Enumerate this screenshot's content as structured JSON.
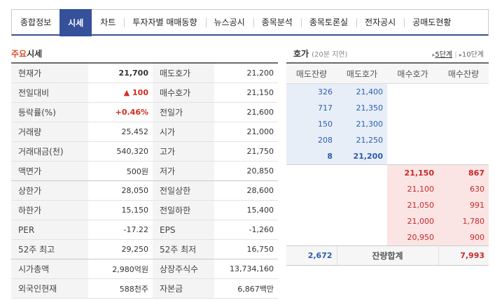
{
  "tabs": [
    "종합정보",
    "시세",
    "차트",
    "투자자별 매매동향",
    "뉴스공시",
    "종목분석",
    "종목토론실",
    "전자공시",
    "공매도현황"
  ],
  "main": {
    "title_highlight": "주요",
    "title_rest": "시세"
  },
  "info_rows": [
    [
      "현재가",
      "21,700",
      "매도호가",
      "21,200"
    ],
    [
      "전일대비",
      "▲ 100",
      "매수호가",
      "21,150"
    ],
    [
      "등락률(%)",
      "+0.46%",
      "전일가",
      "21,600"
    ],
    [
      "거래량",
      "25,452",
      "시가",
      "21,000"
    ],
    [
      "거래대금(천)",
      "540,320",
      "고가",
      "21,750"
    ],
    [
      "액면가",
      "500원",
      "저가",
      "20,850"
    ],
    [
      "상한가",
      "28,050",
      "전일상한",
      "28,600"
    ],
    [
      "하한가",
      "15,150",
      "전일하한",
      "15,400"
    ],
    [
      "PER",
      "-17.22",
      "EPS",
      "-1,260"
    ],
    [
      "52주 최고",
      "29,250",
      "52주 최저",
      "16,750"
    ],
    [
      "시가총액",
      "2,980억원",
      "상장주식수",
      "13,734,160"
    ],
    [
      "외국인현재",
      "588천주",
      "자본금",
      "6,867백만"
    ]
  ],
  "orderbook": {
    "title": "호가",
    "subtitle": "(20분 지연)",
    "step_active": "5단계",
    "step_other": "10단계",
    "headers": [
      "매도잔량",
      "매도호가",
      "매수호가",
      "매수잔량"
    ],
    "asks": [
      [
        "326",
        "21,400"
      ],
      [
        "717",
        "21,350"
      ],
      [
        "150",
        "21,300"
      ],
      [
        "208",
        "21,250"
      ],
      [
        "8",
        "21,200"
      ]
    ],
    "bids": [
      [
        "21,150",
        "867"
      ],
      [
        "21,100",
        "630"
      ],
      [
        "21,050",
        "991"
      ],
      [
        "21,000",
        "1,780"
      ],
      [
        "20,950",
        "900"
      ]
    ],
    "total_ask": "2,672",
    "total_label": "잔량합계",
    "total_bid": "7,993"
  },
  "colors": {
    "tab_active": "#34519a",
    "up_red": "#d52b1e",
    "ask_blue": "#2a5db0",
    "ask_bg": "#e8eef8",
    "bid_bg": "#fbe4e4"
  }
}
